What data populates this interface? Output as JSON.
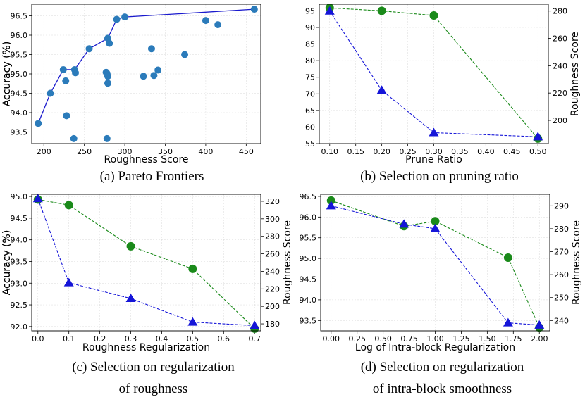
{
  "chart_data": [
    {
      "type": "scatter",
      "id": "a",
      "caption": "(a) Pareto Frontiers",
      "xlabel": "Roughness Score",
      "ylabel": "Accuracy (%)",
      "xlim": [
        185,
        468
      ],
      "ylim": [
        93.2,
        96.8
      ],
      "xticks": [
        200,
        250,
        300,
        350,
        400,
        450
      ],
      "yticks": [
        93.5,
        94.0,
        94.5,
        95.0,
        95.5,
        96.0,
        96.5
      ],
      "ytick_labels": [
        "93.5",
        "94.0",
        "94.5",
        "95.0",
        "95.5",
        "96.0",
        "96.5"
      ],
      "marker_color": "#2b7bba",
      "line_color": "#1a1acd",
      "points": [
        [
          193,
          93.72
        ],
        [
          208,
          94.5
        ],
        [
          224,
          95.11
        ],
        [
          227,
          94.82
        ],
        [
          228,
          93.92
        ],
        [
          237,
          93.33
        ],
        [
          238,
          95.11
        ],
        [
          239,
          95.03
        ],
        [
          256,
          95.65
        ],
        [
          277,
          95.04
        ],
        [
          278,
          95.01
        ],
        [
          279,
          94.94
        ],
        [
          279,
          94.76
        ],
        [
          278,
          93.33
        ],
        [
          279,
          95.92
        ],
        [
          281,
          95.79
        ],
        [
          290,
          96.41
        ],
        [
          300,
          96.47
        ],
        [
          323,
          94.94
        ],
        [
          333,
          95.65
        ],
        [
          336,
          94.96
        ],
        [
          341,
          95.1
        ],
        [
          374,
          95.5
        ],
        [
          400,
          96.38
        ],
        [
          415,
          96.27
        ],
        [
          460,
          96.67
        ]
      ],
      "frontier": [
        [
          193,
          93.72
        ],
        [
          208,
          94.5
        ],
        [
          224,
          95.11
        ],
        [
          238,
          95.11
        ],
        [
          256,
          95.65
        ],
        [
          279,
          95.92
        ],
        [
          290,
          96.41
        ],
        [
          300,
          96.47
        ],
        [
          460,
          96.67
        ]
      ]
    },
    {
      "type": "line",
      "id": "b",
      "caption": "(b) Selection on pruning ratio",
      "xlabel": "Prune Ratio",
      "ylabel_left": "Accuracy (%)",
      "ylabel_right": "Roughness Score",
      "xlim": [
        0.08,
        0.52
      ],
      "xticks": [
        0.1,
        0.15,
        0.2,
        0.25,
        0.3,
        0.35,
        0.4,
        0.45,
        0.5
      ],
      "xtick_labels": [
        "0.10",
        "0.15",
        "0.20",
        "0.25",
        "0.30",
        "0.35",
        "0.40",
        "0.45",
        "0.50"
      ],
      "ylim_left": [
        55,
        97
      ],
      "yticks_left": [
        55,
        60,
        65,
        70,
        75,
        80,
        85,
        90,
        95
      ],
      "ylim_right": [
        183,
        285
      ],
      "yticks_right": [
        200,
        220,
        240,
        260,
        280
      ],
      "x": [
        0.1,
        0.2,
        0.3,
        0.5
      ],
      "series": [
        {
          "name": "Accuracy (%)",
          "axis": "left",
          "marker": "circle",
          "color": "#1a8a1a",
          "values": [
            95.9,
            95.0,
            93.6,
            56.5
          ]
        },
        {
          "name": "Roughness Score",
          "axis": "right",
          "marker": "triangle",
          "color": "#1515d8",
          "values": [
            280,
            222,
            191,
            188
          ]
        }
      ]
    },
    {
      "type": "line",
      "id": "c",
      "caption_lines": [
        "(c) Selection on regularization",
        "of roughness"
      ],
      "xlabel": "Roughness Regularization",
      "ylabel_left": "Accuracy (%)",
      "ylabel_right": "Roughness Score",
      "xlim": [
        -0.02,
        0.72
      ],
      "xticks": [
        0.0,
        0.1,
        0.2,
        0.3,
        0.4,
        0.5,
        0.6,
        0.7
      ],
      "xtick_labels": [
        "0.0",
        "0.1",
        "0.2",
        "0.3",
        "0.4",
        "0.5",
        "0.6",
        "0.7"
      ],
      "ylim_left": [
        91.9,
        95.05
      ],
      "yticks_left": [
        92.0,
        92.5,
        93.0,
        93.5,
        94.0,
        94.5,
        95.0
      ],
      "ytick_labels_left": [
        "92.0",
        "92.5",
        "93.0",
        "93.5",
        "94.0",
        "94.5",
        "95.0"
      ],
      "ylim_right": [
        172,
        328
      ],
      "yticks_right": [
        180,
        200,
        220,
        240,
        260,
        280,
        300,
        320
      ],
      "x": [
        0.0,
        0.1,
        0.3,
        0.5,
        0.7
      ],
      "series": [
        {
          "name": "Accuracy (%)",
          "axis": "left",
          "marker": "circle",
          "color": "#1a8a1a",
          "values": [
            94.93,
            94.8,
            93.85,
            93.33,
            91.95
          ]
        },
        {
          "name": "Roughness Score",
          "axis": "right",
          "marker": "triangle",
          "color": "#1515d8",
          "values": [
            323,
            227,
            209,
            182,
            178
          ]
        }
      ]
    },
    {
      "type": "line",
      "id": "d",
      "caption_lines": [
        "(d) Selection on regularization",
        "of intra-block smoothness"
      ],
      "xlabel": "Log of Intra-block Regularization",
      "ylabel_left": "Accuracy (%)",
      "ylabel_right": "Roughness Score",
      "xlim": [
        -0.1,
        2.1
      ],
      "xticks": [
        0.0,
        0.25,
        0.5,
        0.75,
        1.0,
        1.25,
        1.5,
        1.75,
        2.0
      ],
      "xtick_labels": [
        "0.00",
        "0.25",
        "0.50",
        "0.75",
        "1.00",
        "1.25",
        "1.50",
        "1.75",
        "2.00"
      ],
      "ylim_left": [
        93.25,
        96.55
      ],
      "yticks_left": [
        93.5,
        94.0,
        94.5,
        95.0,
        95.5,
        96.0,
        96.5
      ],
      "ytick_labels_left": [
        "93.5",
        "94.0",
        "94.5",
        "95.0",
        "95.5",
        "96.0",
        "96.5"
      ],
      "ylim_right": [
        235.5,
        295
      ],
      "yticks_right": [
        240,
        250,
        260,
        270,
        280,
        290
      ],
      "x": [
        0.0,
        0.7,
        1.0,
        1.7,
        2.0
      ],
      "series": [
        {
          "name": "Accuracy (%)",
          "axis": "left",
          "marker": "circle",
          "color": "#1a8a1a",
          "values": [
            96.4,
            95.78,
            95.9,
            95.02,
            93.33
          ]
        },
        {
          "name": "Roughness Score",
          "axis": "right",
          "marker": "triangle",
          "color": "#1515d8",
          "values": [
            290,
            282,
            280,
            239,
            238
          ]
        }
      ]
    }
  ]
}
